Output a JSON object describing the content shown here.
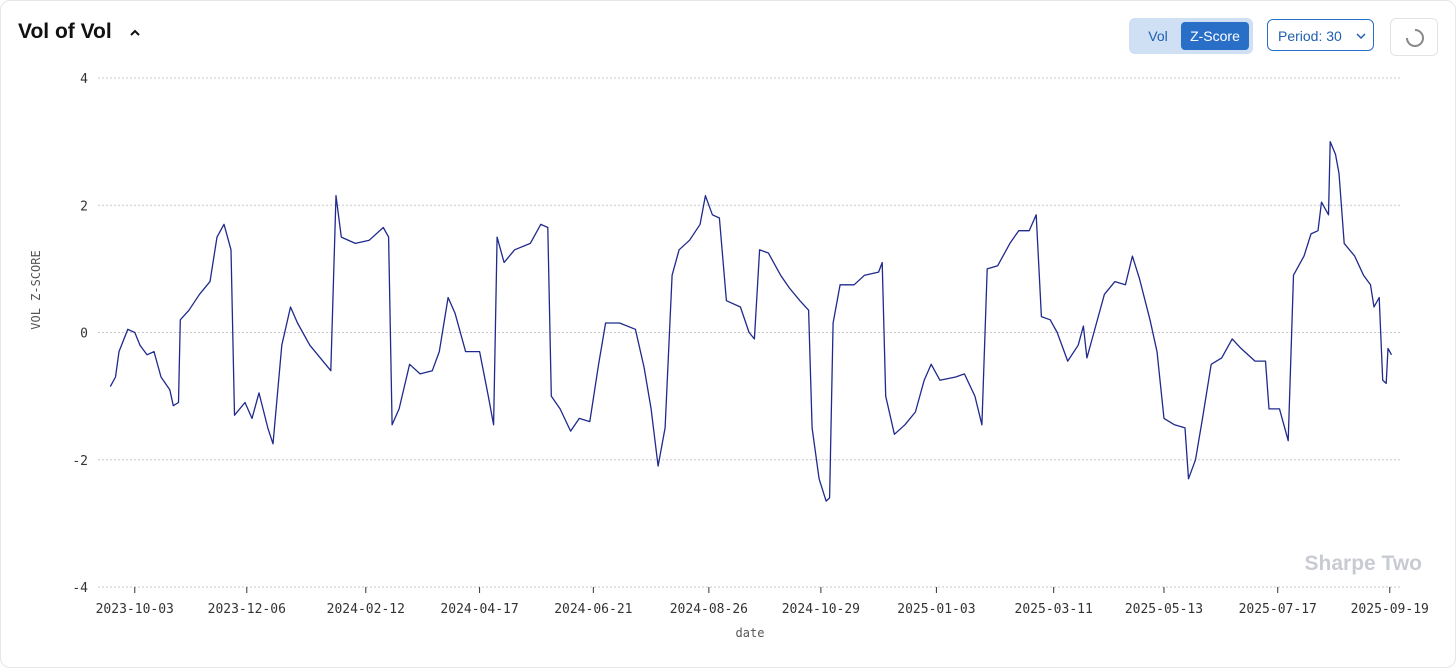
{
  "header": {
    "title": "Vol of Vol",
    "toggle": [
      "Vol",
      "Z-Score"
    ],
    "period": "Period: 30"
  },
  "chart_data": {
    "type": "line",
    "y_label": "VOL Z-SCORE",
    "x_label": "date",
    "watermark": "Sharpe Two",
    "xlim": [
      "2023-09-12",
      "2025-09-26"
    ],
    "ylim": [
      -4,
      4
    ],
    "xticks": [
      "2023-10-03",
      "2023-12-06",
      "2024-02-12",
      "2024-04-17",
      "2024-06-21",
      "2024-08-26",
      "2024-10-29",
      "2025-01-03",
      "2025-03-11",
      "2025-05-13",
      "2025-07-17",
      "2025-09-19"
    ],
    "yticks": [
      -4,
      -2,
      0,
      2,
      4
    ],
    "grid": true,
    "x": [
      "2023-09-19",
      "2023-09-22",
      "2023-09-24",
      "2023-09-29",
      "2023-10-03",
      "2023-10-06",
      "2023-10-10",
      "2023-10-14",
      "2023-10-18",
      "2023-10-23",
      "2023-10-25",
      "2023-10-28",
      "2023-10-29",
      "2023-11-03",
      "2023-11-09",
      "2023-11-15",
      "2023-11-19",
      "2023-11-23",
      "2023-11-27",
      "2023-11-29",
      "2023-12-05",
      "2023-12-09",
      "2023-12-13",
      "2023-12-18",
      "2023-12-21",
      "2023-12-26",
      "2023-12-31",
      "2024-01-04",
      "2024-01-11",
      "2024-01-17",
      "2024-01-23",
      "2024-01-26",
      "2024-01-29",
      "2024-02-06",
      "2024-02-14",
      "2024-02-22",
      "2024-02-25",
      "2024-02-27",
      "2024-03-02",
      "2024-03-08",
      "2024-03-14",
      "2024-03-21",
      "2024-03-25",
      "2024-03-30",
      "2024-04-03",
      "2024-04-09",
      "2024-04-17",
      "2024-04-22",
      "2024-04-25",
      "2024-04-27",
      "2024-05-01",
      "2024-05-07",
      "2024-05-16",
      "2024-05-22",
      "2024-05-26",
      "2024-05-28",
      "2024-06-02",
      "2024-06-08",
      "2024-06-13",
      "2024-06-19",
      "2024-06-24",
      "2024-06-28",
      "2024-07-06",
      "2024-07-15",
      "2024-07-20",
      "2024-07-24",
      "2024-07-28",
      "2024-08-01",
      "2024-08-05",
      "2024-08-09",
      "2024-08-15",
      "2024-08-21",
      "2024-08-24",
      "2024-08-28",
      "2024-09-01",
      "2024-09-05",
      "2024-09-13",
      "2024-09-18",
      "2024-09-21",
      "2024-09-24",
      "2024-09-29",
      "2024-10-06",
      "2024-10-11",
      "2024-10-17",
      "2024-10-22",
      "2024-10-24",
      "2024-10-28",
      "2024-11-01",
      "2024-11-03",
      "2024-11-05",
      "2024-11-09",
      "2024-11-17",
      "2024-11-23",
      "2024-12-01",
      "2024-12-03",
      "2024-12-05",
      "2024-12-10",
      "2024-12-16",
      "2024-12-22",
      "2024-12-27",
      "2024-12-31",
      "2025-01-05",
      "2025-01-14",
      "2025-01-19",
      "2025-01-25",
      "2025-01-29",
      "2025-02-01",
      "2025-02-07",
      "2025-02-14",
      "2025-02-19",
      "2025-02-25",
      "2025-03-01",
      "2025-03-04",
      "2025-03-09",
      "2025-03-13",
      "2025-03-19",
      "2025-03-25",
      "2025-03-28",
      "2025-03-30",
      "2025-04-03",
      "2025-04-09",
      "2025-04-15",
      "2025-04-21",
      "2025-04-25",
      "2025-04-29",
      "2025-05-05",
      "2025-05-09",
      "2025-05-13",
      "2025-05-19",
      "2025-05-25",
      "2025-05-27",
      "2025-05-31",
      "2025-06-04",
      "2025-06-09",
      "2025-06-15",
      "2025-06-21",
      "2025-06-26",
      "2025-07-04",
      "2025-07-10",
      "2025-07-12",
      "2025-07-18",
      "2025-07-23",
      "2025-07-26",
      "2025-08-01",
      "2025-08-05",
      "2025-08-09",
      "2025-08-11",
      "2025-08-15",
      "2025-08-16",
      "2025-08-19",
      "2025-08-21",
      "2025-08-24",
      "2025-08-30",
      "2025-09-04",
      "2025-09-08",
      "2025-09-10",
      "2025-09-13",
      "2025-09-15",
      "2025-09-17",
      "2025-09-18",
      "2025-09-20"
    ],
    "series": [
      {
        "color": "#1f2a8c",
        "values": [
          -0.85,
          -0.7,
          -0.3,
          0.05,
          0.0,
          -0.2,
          -0.35,
          -0.3,
          -0.7,
          -0.9,
          -1.15,
          -1.1,
          0.2,
          0.35,
          0.6,
          0.8,
          1.5,
          1.7,
          1.3,
          -1.3,
          -1.1,
          -1.35,
          -0.95,
          -1.5,
          -1.75,
          -0.2,
          0.4,
          0.15,
          -0.2,
          -0.4,
          -0.6,
          2.15,
          1.5,
          1.4,
          1.45,
          1.65,
          1.5,
          -1.45,
          -1.2,
          -0.5,
          -0.65,
          -0.6,
          -0.3,
          0.55,
          0.3,
          -0.3,
          -0.3,
          -1.0,
          -1.45,
          1.5,
          1.1,
          1.3,
          1.4,
          1.7,
          1.65,
          -1.0,
          -1.2,
          -1.55,
          -1.35,
          -1.4,
          -0.5,
          0.15,
          0.15,
          0.05,
          -0.55,
          -1.2,
          -2.1,
          -1.5,
          0.9,
          1.3,
          1.45,
          1.7,
          2.15,
          1.85,
          1.8,
          0.5,
          0.4,
          0.0,
          -0.1,
          1.3,
          1.25,
          0.9,
          0.7,
          0.5,
          0.35,
          -1.5,
          -2.3,
          -2.65,
          -2.6,
          0.15,
          0.75,
          0.75,
          0.9,
          0.95,
          1.1,
          -1.0,
          -1.6,
          -1.45,
          -1.25,
          -0.75,
          -0.5,
          -0.75,
          -0.7,
          -0.65,
          -1.0,
          -1.45,
          1.0,
          1.05,
          1.4,
          1.6,
          1.6,
          1.85,
          0.25,
          0.2,
          0.0,
          -0.45,
          -0.2,
          0.1,
          -0.4,
          0.0,
          0.6,
          0.8,
          0.75,
          1.2,
          0.85,
          0.2,
          -0.3,
          -1.35,
          -1.45,
          -1.5,
          -2.3,
          -2.0,
          -1.35,
          -0.5,
          -0.4,
          -0.1,
          -0.25,
          -0.45,
          -0.45,
          -1.2,
          -1.2,
          -1.7,
          0.9,
          1.2,
          1.55,
          1.6,
          2.05,
          1.85,
          3.0,
          2.8,
          2.5,
          1.4,
          1.2,
          0.9,
          0.75,
          0.4,
          0.55,
          -0.75,
          -0.8,
          -0.25,
          -0.35
        ]
      }
    ]
  }
}
